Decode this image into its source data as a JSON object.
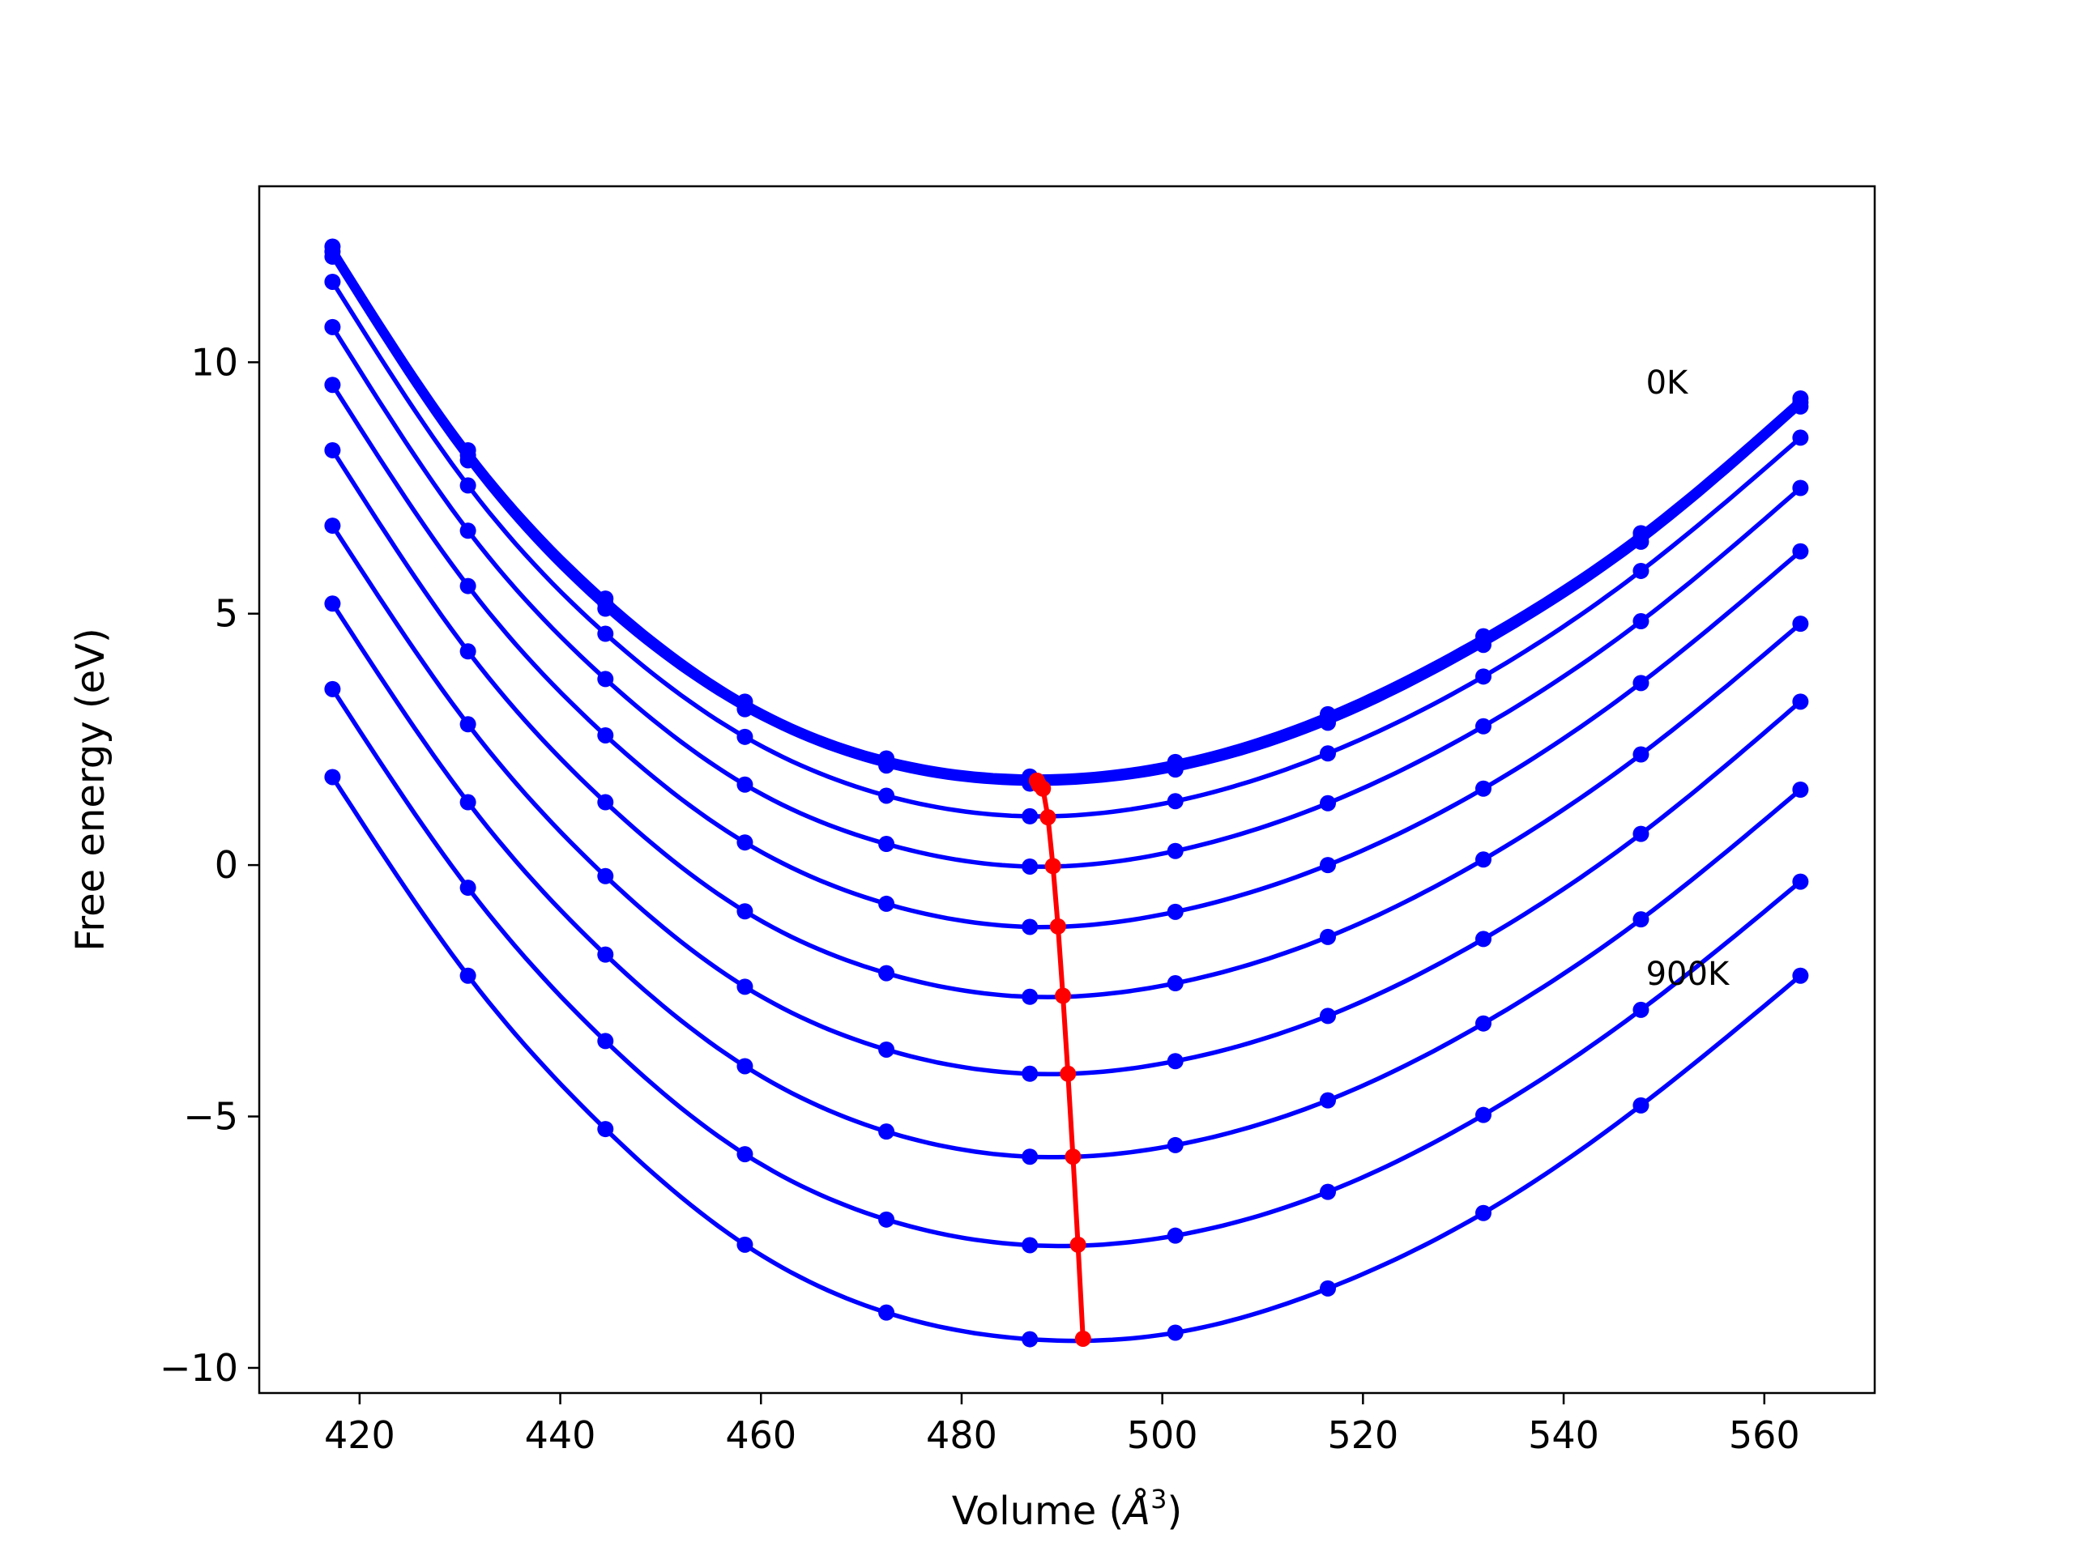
{
  "chart_data": {
    "type": "line",
    "title": "",
    "xlabel": "Volume (Å³)",
    "xlabel_parts": {
      "main": "Volume (",
      "angstrom": "Å",
      "sup": "3",
      "close": ")"
    },
    "ylabel": "Free energy (eV)",
    "xlim": [
      410,
      571
    ],
    "ylim": [
      -10.5,
      13.5
    ],
    "xticks": [
      420,
      440,
      460,
      480,
      500,
      520,
      540,
      560
    ],
    "xtick_labels": [
      "420",
      "440",
      "460",
      "480",
      "500",
      "520",
      "540",
      "560"
    ],
    "yticks": [
      10,
      5,
      0,
      -5,
      -10
    ],
    "ytick_labels": [
      "10",
      "5",
      "0",
      "−5",
      "−10"
    ],
    "grid": false,
    "x": [
      417.3,
      430.8,
      444.5,
      458.4,
      472.5,
      486.8,
      501.3,
      516.5,
      532.0,
      547.7,
      563.6
    ],
    "series": [
      {
        "values": [
          12.3,
          8.25,
          5.3,
          3.25,
          2.12,
          1.76,
          2.05,
          3.0,
          4.55,
          6.6,
          9.28
        ]
      },
      {
        "values": [
          12.2,
          8.15,
          5.2,
          3.18,
          2.05,
          1.7,
          1.98,
          2.92,
          4.47,
          6.52,
          9.2
        ]
      },
      {
        "values": [
          12.1,
          8.05,
          5.1,
          3.1,
          1.98,
          1.62,
          1.9,
          2.83,
          4.38,
          6.43,
          9.12
        ]
      },
      {
        "values": [
          11.6,
          7.55,
          4.6,
          2.55,
          1.38,
          0.97,
          1.27,
          2.22,
          3.75,
          5.85,
          8.5
        ]
      },
      {
        "values": [
          10.7,
          6.65,
          3.7,
          1.6,
          0.42,
          -0.03,
          0.28,
          1.23,
          2.76,
          4.85,
          7.5
        ]
      },
      {
        "values": [
          9.55,
          5.55,
          2.58,
          0.45,
          -0.77,
          -1.23,
          -0.93,
          0.0,
          1.52,
          3.62,
          6.24
        ]
      },
      {
        "values": [
          8.25,
          4.25,
          1.25,
          -0.92,
          -2.15,
          -2.62,
          -2.35,
          -1.43,
          0.11,
          2.2,
          4.8
        ]
      },
      {
        "values": [
          6.75,
          2.8,
          -0.22,
          -2.42,
          -3.67,
          -4.15,
          -3.9,
          -3.0,
          -1.47,
          0.62,
          3.25
        ]
      },
      {
        "values": [
          5.2,
          1.25,
          -1.78,
          -4.0,
          -5.3,
          -5.8,
          -5.57,
          -4.68,
          -3.15,
          -1.08,
          1.5
        ]
      },
      {
        "values": [
          3.5,
          -0.45,
          -3.5,
          -5.75,
          -7.05,
          -7.56,
          -7.37,
          -6.5,
          -4.97,
          -2.88,
          -0.33
        ]
      },
      {
        "values": [
          1.75,
          -2.2,
          -5.25,
          -7.55,
          -8.9,
          -9.43,
          -9.3,
          -8.42,
          -6.92,
          -4.78,
          -2.2
        ]
      }
    ],
    "minima_line": {
      "x": [
        487.5,
        487.7,
        488.1,
        488.6,
        489.1,
        489.6,
        490.1,
        490.6,
        491.1,
        491.6,
        492.1
      ],
      "y": [
        1.68,
        1.6,
        1.52,
        0.95,
        -0.02,
        -1.22,
        -2.6,
        -4.15,
        -5.8,
        -7.55,
        -9.42
      ]
    },
    "annotations": [
      {
        "text": "0K",
        "x": 548.2,
        "y": 9.38
      },
      {
        "text": "900K",
        "x": 548.2,
        "y": -2.38
      }
    ],
    "colors": {
      "curve": "#0000ff",
      "minima": "#ff0000",
      "axis": "#000000",
      "background": "#ffffff"
    }
  }
}
